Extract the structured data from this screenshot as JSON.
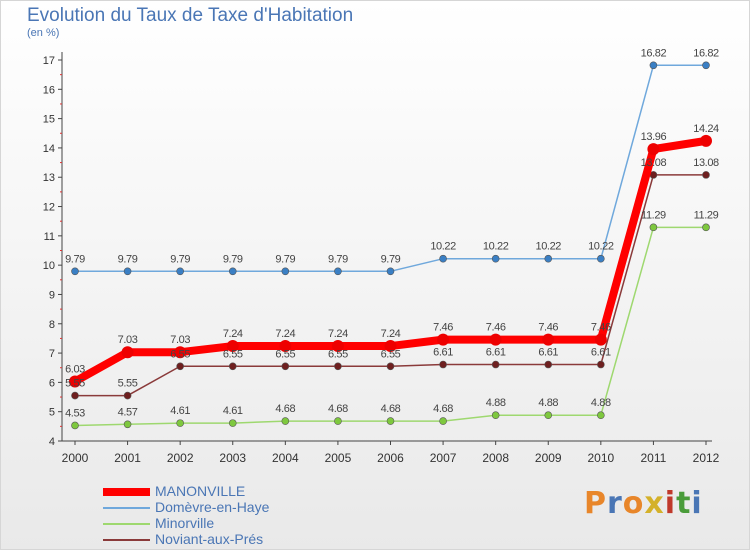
{
  "header": {
    "title": "Evolution du Taux de Taxe d'Habitation",
    "unit": "(en %)"
  },
  "logo": {
    "text": "Proxiti",
    "colors": [
      "#e8862a",
      "#4a76b5",
      "#e8862a",
      "#d4b12a",
      "#c0392b",
      "#4a9c3a",
      "#4a76b5"
    ]
  },
  "chart_data": {
    "type": "line",
    "title": "Evolution du Taux de Taxe d'Habitation",
    "ylabel": "(en %)",
    "xlabel": "",
    "ylim": [
      4,
      17
    ],
    "yticks": [
      4,
      5,
      6,
      7,
      8,
      9,
      10,
      11,
      12,
      13,
      14,
      15,
      16,
      17
    ],
    "categories": [
      "2000",
      "2001",
      "2002",
      "2003",
      "2004",
      "2005",
      "2006",
      "2007",
      "2008",
      "2009",
      "2010",
      "2011",
      "2012"
    ],
    "series": [
      {
        "name": "Domèvre-en-Haye",
        "color": "#6fa8dc",
        "point_color": "#3a7fc4",
        "values": [
          9.79,
          9.79,
          9.79,
          9.79,
          9.79,
          9.79,
          9.79,
          10.22,
          10.22,
          10.22,
          10.22,
          16.82,
          16.82
        ],
        "labels": [
          "9.79",
          "9.79",
          "9.79",
          "9.79",
          "9.79",
          "9.79",
          "9.79",
          "10.22",
          "10.22",
          "10.22",
          "10.22",
          "16.82",
          "16.82"
        ]
      },
      {
        "name": "Minorville",
        "color": "#9ed86f",
        "point_color": "#7ec83e",
        "values": [
          4.53,
          4.57,
          4.61,
          4.61,
          4.68,
          4.68,
          4.68,
          4.68,
          4.88,
          4.88,
          4.88,
          11.29,
          11.29
        ],
        "labels": [
          "4.53",
          "4.57",
          "4.61",
          "4.61",
          "4.68",
          "4.68",
          "4.68",
          "4.68",
          "4.88",
          "4.88",
          "4.88",
          "11.29",
          "11.29"
        ]
      },
      {
        "name": "Noviant-aux-Prés",
        "color": "#8a3a3a",
        "point_color": "#6e1f1f",
        "values": [
          5.55,
          5.55,
          6.55,
          6.55,
          6.55,
          6.55,
          6.55,
          6.61,
          6.61,
          6.61,
          6.61,
          13.08,
          13.08
        ],
        "labels": [
          "5.55",
          "5.55",
          "6.55",
          "6.55",
          "6.55",
          "6.55",
          "6.55",
          "6.61",
          "6.61",
          "6.61",
          "6.61",
          "13.08",
          "13.08"
        ]
      },
      {
        "name": "MANONVILLE",
        "color": "#ff0000",
        "point_color": "#ee0000",
        "values": [
          6.03,
          7.03,
          7.03,
          7.24,
          7.24,
          7.24,
          7.24,
          7.46,
          7.46,
          7.46,
          7.46,
          13.96,
          14.24
        ],
        "labels": [
          "6.03",
          "7.03",
          "7.03",
          "7.24",
          "7.24",
          "7.24",
          "7.24",
          "7.46",
          "7.46",
          "7.46",
          "7.46",
          "13.96",
          "14.24"
        ]
      }
    ],
    "legend": [
      {
        "name": "MANONVILLE",
        "color": "#ff0000",
        "text_color": "#4a76b5"
      },
      {
        "name": "Domèvre-en-Haye",
        "color": "#6fa8dc",
        "text_color": "#4a76b5"
      },
      {
        "name": "Minorville",
        "color": "#9ed86f",
        "text_color": "#4a76b5"
      },
      {
        "name": "Noviant-aux-Prés",
        "color": "#8a3a3a",
        "text_color": "#4a76b5"
      }
    ],
    "legend_position": "bottom-left",
    "grid": false
  }
}
